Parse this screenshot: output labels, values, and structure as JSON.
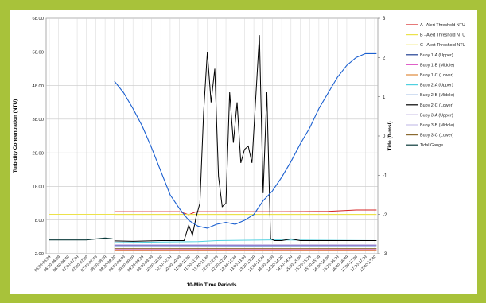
{
  "accent_color": "#a8c23a",
  "chart_data": {
    "type": "line",
    "title": "",
    "xlabel": "10-Min Time Periods",
    "ylabel": "Turbidity Concentration (NTU)",
    "y2label": "Tide (ft-msl)",
    "ylim": [
      -2,
      68
    ],
    "y2lim": [
      -3,
      3
    ],
    "y_ticks": [
      "-2.00",
      "8.00",
      "18.00",
      "28.00",
      "38.00",
      "48.00",
      "58.00",
      "68.00"
    ],
    "y2_ticks": [
      "-3",
      "-2",
      "-1",
      "0",
      "1",
      "2",
      "3"
    ],
    "grid": true,
    "legend_position": "right",
    "categories": [
      "06:00-06:09",
      "06:20-06:29",
      "06:40-06:49",
      "07:00-07:09",
      "07:20-07:29",
      "07:40-07:49",
      "08:00-08:09",
      "08:20-08:29",
      "08:40-08:49",
      "09:00-09:09",
      "09:20-09:29",
      "09:40-09:49",
      "10:00-10:09",
      "10:20-10:29",
      "10:40-10:49",
      "11:00-11:09",
      "11:20-11:29",
      "11:40-11:49",
      "12:00-12:09",
      "12:20-12:29",
      "12:40-12:49",
      "13:00-13:09",
      "13:20-13:29",
      "13:40-13:49",
      "14:00-14:09",
      "14:20-14:29",
      "14:40-14:49",
      "15:00-15:09",
      "15:20-15:29",
      "15:40-15:49",
      "16:00-16:09",
      "16:20-16:29",
      "16:40-16:49",
      "17:00-17:09",
      "17:20-17:29",
      "17:40-17:49"
    ],
    "series": [
      {
        "name": "A - Alert Threshold NTU",
        "color": "#d42020",
        "axis": "left",
        "x_start": 7.0,
        "x_end": 35.2,
        "points": [
          [
            7,
            10.5
          ],
          [
            10,
            10.5
          ],
          [
            14,
            10.5
          ],
          [
            15,
            9.6
          ],
          [
            15.8,
            10.5
          ],
          [
            20,
            10.5
          ],
          [
            25,
            10.5
          ],
          [
            30,
            10.6
          ],
          [
            33,
            11
          ],
          [
            35.2,
            11
          ]
        ]
      },
      {
        "name": "B - Alert Threshold NTU",
        "color": "#ece24a",
        "axis": "left",
        "x_start": 0,
        "x_end": 35.2,
        "points": [
          [
            0,
            9.7
          ],
          [
            35.2,
            9.7
          ]
        ]
      },
      {
        "name": "C - Alert Threshold NTU",
        "color": "#f2ea7a",
        "axis": "left",
        "x_start": 7.0,
        "x_end": 35.2,
        "points": [
          [
            7,
            9.3
          ],
          [
            35.2,
            9.3
          ]
        ]
      },
      {
        "name": "Buoy 1-A (Upper)",
        "color": "#1f3f93",
        "axis": "left",
        "points": [
          [
            7,
            1.2
          ],
          [
            35.2,
            1.2
          ]
        ]
      },
      {
        "name": "Buoy 1-B (Middle)",
        "color": "#e060c8",
        "axis": "left",
        "points": [
          [
            7,
            -0.8
          ],
          [
            35.2,
            -0.8
          ]
        ]
      },
      {
        "name": "Buoy 1-C (Lower)",
        "color": "#e08a3c",
        "axis": "left",
        "points": [
          [
            7,
            -1.0
          ],
          [
            35.2,
            -1.0
          ]
        ]
      },
      {
        "name": "Buoy 2-A (Upper)",
        "color": "#4fd0e0",
        "axis": "left",
        "points": [
          [
            7,
            1.3
          ],
          [
            16,
            1.6
          ],
          [
            18,
            1.9
          ],
          [
            24,
            2.1
          ],
          [
            35.2,
            1.9
          ]
        ]
      },
      {
        "name": "Buoy 2-B (Middle)",
        "color": "#8fb0e0",
        "axis": "left",
        "points": [
          [
            7,
            0.3
          ],
          [
            35.2,
            0.2
          ]
        ]
      },
      {
        "name": "Buoy 2-C (Lower)",
        "color": "#000000",
        "axis": "left",
        "points": [
          [
            7,
            1.8
          ],
          [
            9,
            1.7
          ],
          [
            12,
            1.9
          ],
          [
            14.5,
            1.9
          ],
          [
            15,
            6.5
          ],
          [
            15.4,
            3.5
          ],
          [
            15.8,
            9
          ],
          [
            16.2,
            13
          ],
          [
            16.6,
            40
          ],
          [
            17.0,
            58
          ],
          [
            17.4,
            43
          ],
          [
            17.8,
            53
          ],
          [
            18.2,
            21
          ],
          [
            18.6,
            12
          ],
          [
            19.0,
            13
          ],
          [
            19.4,
            46
          ],
          [
            19.8,
            31
          ],
          [
            20.2,
            43
          ],
          [
            20.6,
            25
          ],
          [
            21.0,
            29
          ],
          [
            21.4,
            30
          ],
          [
            21.8,
            25
          ],
          [
            22.2,
            44
          ],
          [
            22.6,
            63
          ],
          [
            23.0,
            16
          ],
          [
            23.4,
            46
          ],
          [
            23.8,
            2.5
          ],
          [
            24.2,
            1.9
          ],
          [
            25,
            1.9
          ],
          [
            26,
            2.4
          ],
          [
            27,
            1.9
          ],
          [
            35.2,
            1.9
          ]
        ]
      },
      {
        "name": "Buoy 3-A (Upper)",
        "color": "#7a5fc0",
        "axis": "left",
        "points": [
          [
            7,
            0.5
          ],
          [
            35.2,
            0.5
          ]
        ]
      },
      {
        "name": "Buoy 3-B (Middle)",
        "color": "#c8c0e8",
        "axis": "left",
        "points": [
          [
            7,
            0.7
          ],
          [
            35.2,
            0.7
          ]
        ]
      },
      {
        "name": "Buoy 3-C (Lower)",
        "color": "#8a6a30",
        "axis": "left",
        "points": [
          [
            7,
            -0.5
          ],
          [
            35.2,
            -0.5
          ]
        ]
      },
      {
        "name": "Tidal Gauge",
        "color": "#1a5fd0",
        "axis": "right",
        "dark_color": "#0b3a3a",
        "points": [
          [
            0,
            -2.65
          ],
          [
            4,
            -2.65
          ],
          [
            6,
            -2.6
          ],
          [
            6.8,
            -2.62
          ],
          [
            7,
            1.4
          ],
          [
            8,
            1.1
          ],
          [
            9,
            0.7
          ],
          [
            10,
            0.25
          ],
          [
            11,
            -0.3
          ],
          [
            12,
            -0.9
          ],
          [
            13,
            -1.5
          ],
          [
            14,
            -1.85
          ],
          [
            15,
            -2.15
          ],
          [
            16,
            -2.3
          ],
          [
            17,
            -2.35
          ],
          [
            18,
            -2.25
          ],
          [
            19,
            -2.2
          ],
          [
            20,
            -2.25
          ],
          [
            21,
            -2.15
          ],
          [
            22,
            -2.0
          ],
          [
            23,
            -1.65
          ],
          [
            24,
            -1.4
          ],
          [
            25,
            -1.05
          ],
          [
            26,
            -0.65
          ],
          [
            27,
            -0.2
          ],
          [
            28,
            0.2
          ],
          [
            29,
            0.7
          ],
          [
            30,
            1.1
          ],
          [
            31,
            1.5
          ],
          [
            32,
            1.8
          ],
          [
            33,
            2.0
          ],
          [
            34,
            2.1
          ],
          [
            35.2,
            2.1
          ]
        ]
      }
    ]
  }
}
